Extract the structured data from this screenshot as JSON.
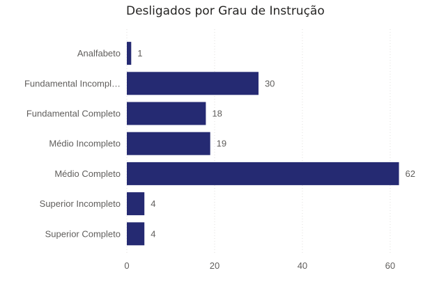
{
  "chart_data": {
    "type": "bar",
    "orientation": "horizontal",
    "title": "Desligados por Grau de Instrução",
    "categories": [
      "Analfabeto",
      "Fundamental Incompl…",
      "Fundamental Completo",
      "Médio Incompleto",
      "Médio Completo",
      "Superior Incompleto",
      "Superior Completo"
    ],
    "values": [
      1,
      30,
      18,
      19,
      62,
      4,
      4
    ],
    "xlim": [
      0,
      66
    ],
    "xticks": [
      0,
      20,
      40,
      60
    ],
    "xtick_labels": [
      "0",
      "20",
      "40",
      "60"
    ],
    "grid": "vertical dotted",
    "bar_color": "#252a72",
    "text_color": "#605e5c",
    "grid_color": "#e1dfdd"
  }
}
